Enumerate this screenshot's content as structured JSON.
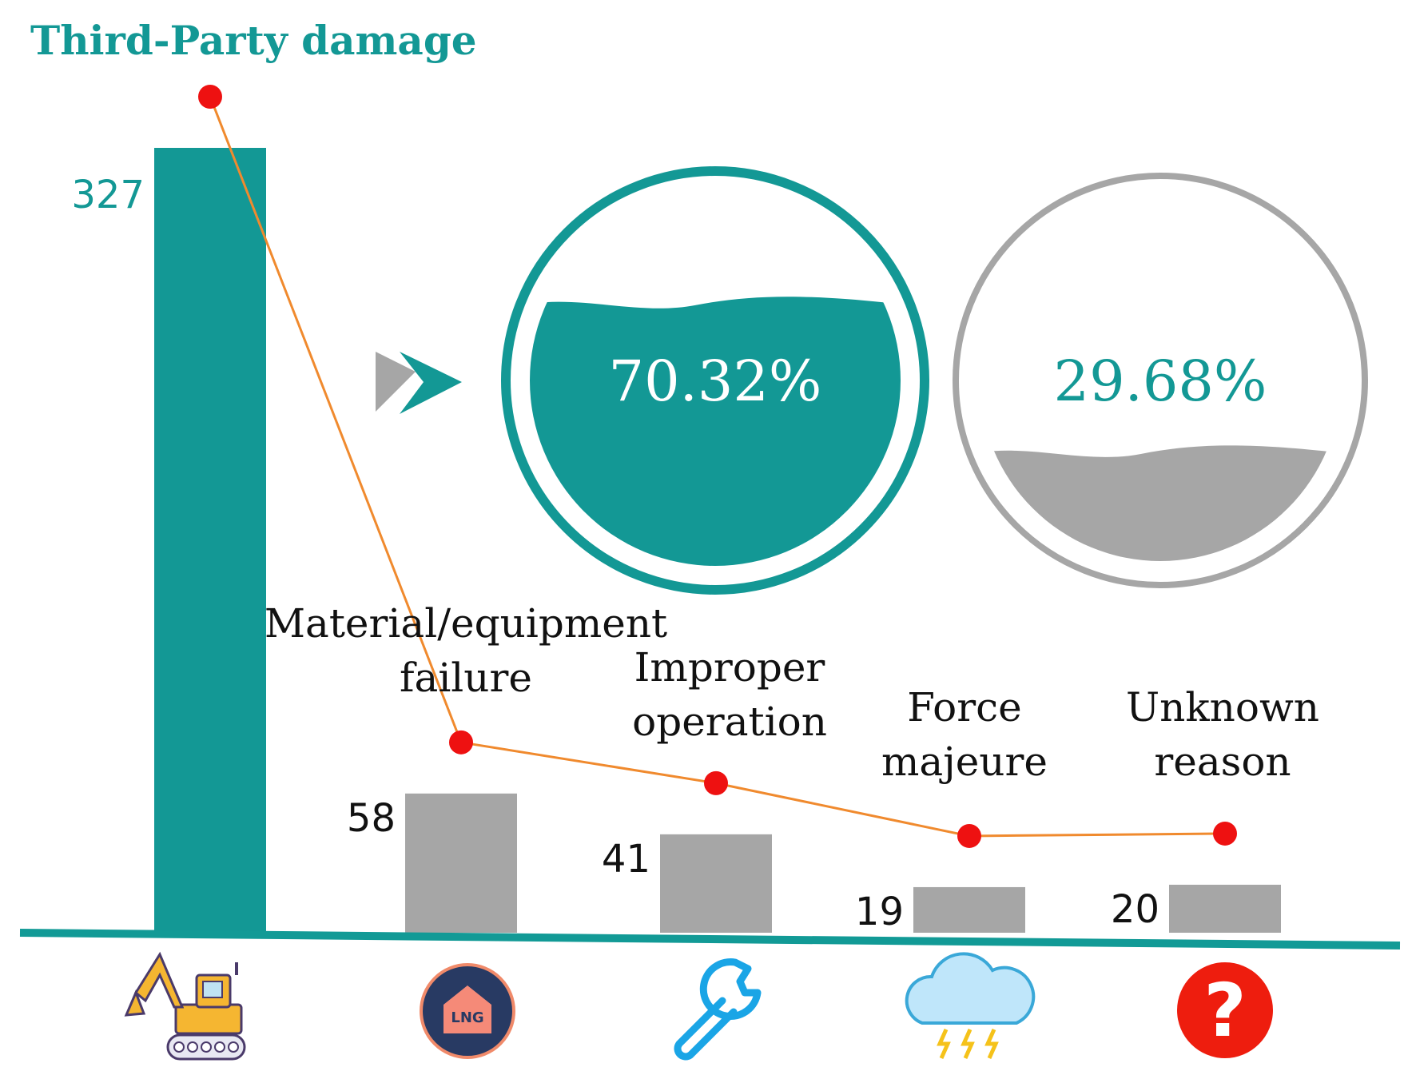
{
  "chart_data": {
    "type": "bar",
    "title": "Third-Party damage",
    "categories": [
      "Third-Party damage",
      "Material/equipment failure",
      "Improper operation",
      "Force majeure",
      "Unknown reason"
    ],
    "category_lines": [
      [
        "Material/equipment",
        "failure"
      ],
      [
        "Improper",
        "operation"
      ],
      [
        "Force",
        "majeure"
      ],
      [
        "Unknown",
        "reason"
      ]
    ],
    "values": [
      327,
      58,
      41,
      19,
      20
    ],
    "value_labels": [
      "327",
      "58",
      "41",
      "19",
      "20"
    ],
    "trend_line": true,
    "icons": [
      "excavator-icon",
      "lng-icon",
      "wrench-icon",
      "storm-cloud-icon",
      "question-icon"
    ],
    "share_gauges": [
      {
        "label": "70.32%",
        "value": 0.7032,
        "color": "#139895"
      },
      {
        "label": "29.68%",
        "value": 0.2968,
        "color": "#a6a6a6"
      }
    ],
    "colors": {
      "primary": "#139895",
      "secondary": "#a6a6a6",
      "line": "#f08a2e",
      "marker": "#ee1111",
      "axis": "#129a96",
      "text": "#111111"
    }
  }
}
